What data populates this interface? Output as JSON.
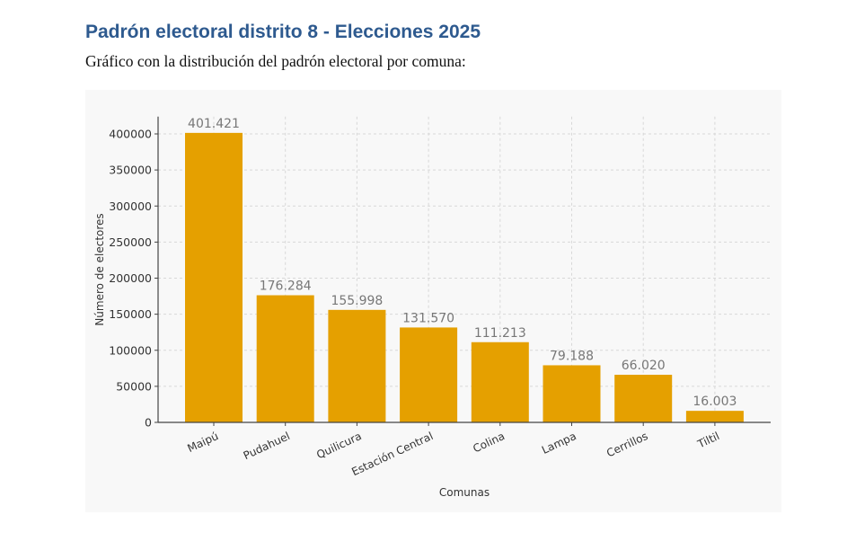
{
  "document": {
    "title": "Padrón electoral distrito 8 - Elecciones 2025",
    "subtitle": "Gráfico con la distribución del padrón electoral por comuna:"
  },
  "chart_data": {
    "type": "bar",
    "title": "",
    "xlabel": "Comunas",
    "ylabel": "Número de electores",
    "categories": [
      "Maipú",
      "Pudahuel",
      "Quilicura",
      "Estación Central",
      "Colina",
      "Lampa",
      "Cerrillos",
      "Tiltil"
    ],
    "values": [
      401421,
      176284,
      155998,
      131570,
      111213,
      79188,
      66020,
      16003
    ],
    "data_labels": [
      "401.421",
      "176.284",
      "155.998",
      "131.570",
      "111.213",
      "79.188",
      "66.020",
      "16.003"
    ],
    "yticks": [
      0,
      50000,
      100000,
      150000,
      200000,
      250000,
      300000,
      350000,
      400000
    ],
    "ylim": [
      0,
      424000
    ],
    "grid": true,
    "bar_color": "#e5a000",
    "label_color": "#777777"
  }
}
